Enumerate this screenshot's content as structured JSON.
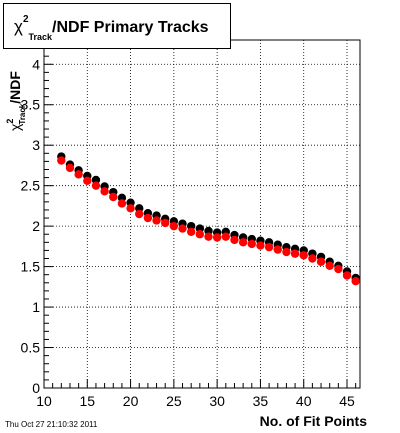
{
  "chart_data": {
    "type": "scatter",
    "title": {
      "chi": "χ",
      "sup": "2",
      "sub": "Track",
      "main": "/NDF Primary Tracks"
    },
    "ylabel": {
      "chi": "χ",
      "sup": "2",
      "sub": "Track",
      "main": "/NDF"
    },
    "xlabel": "No. of Fit Points",
    "xlim": [
      10,
      46.5
    ],
    "ylim": [
      0,
      4.3
    ],
    "x_ticks": [
      {
        "value": 10,
        "label": "10"
      },
      {
        "value": 15,
        "label": "15"
      },
      {
        "value": 20,
        "label": "20"
      },
      {
        "value": 25,
        "label": "25"
      },
      {
        "value": 30,
        "label": "30"
      },
      {
        "value": 35,
        "label": "35"
      },
      {
        "value": 40,
        "label": "40"
      },
      {
        "value": 45,
        "label": "45"
      }
    ],
    "y_ticks": [
      {
        "value": 0,
        "label": "0"
      },
      {
        "value": 0.5,
        "label": "0.5"
      },
      {
        "value": 1,
        "label": "1"
      },
      {
        "value": 1.5,
        "label": "1.5"
      },
      {
        "value": 2,
        "label": "2"
      },
      {
        "value": 2.5,
        "label": "2.5"
      },
      {
        "value": 3,
        "label": "3"
      },
      {
        "value": 3.5,
        "label": "3.5"
      },
      {
        "value": 4,
        "label": "4"
      }
    ],
    "grid": true,
    "x": [
      12,
      13,
      14,
      15,
      16,
      17,
      18,
      19,
      20,
      21,
      22,
      23,
      24,
      25,
      26,
      27,
      28,
      29,
      30,
      31,
      32,
      33,
      34,
      35,
      36,
      37,
      38,
      39,
      40,
      41,
      42,
      43,
      44,
      45,
      46
    ],
    "series": [
      {
        "color": "#000000",
        "values": [
          2.86,
          2.76,
          2.69,
          2.62,
          2.57,
          2.49,
          2.42,
          2.35,
          2.29,
          2.22,
          2.16,
          2.13,
          2.09,
          2.06,
          2.03,
          2.0,
          1.97,
          1.94,
          1.92,
          1.93,
          1.89,
          1.86,
          1.84,
          1.82,
          1.8,
          1.77,
          1.74,
          1.72,
          1.7,
          1.66,
          1.62,
          1.56,
          1.51,
          1.44,
          1.36
        ]
      },
      {
        "color": "#ff0000",
        "values": [
          2.81,
          2.72,
          2.64,
          2.56,
          2.5,
          2.43,
          2.36,
          2.28,
          2.22,
          2.15,
          2.1,
          2.07,
          2.04,
          2.0,
          1.97,
          1.93,
          1.9,
          1.87,
          1.86,
          1.87,
          1.83,
          1.8,
          1.78,
          1.76,
          1.74,
          1.71,
          1.68,
          1.66,
          1.64,
          1.6,
          1.56,
          1.51,
          1.47,
          1.39,
          1.32
        ]
      }
    ]
  },
  "footer": {
    "date": "Thu Oct 27 21:10:32 2011"
  }
}
